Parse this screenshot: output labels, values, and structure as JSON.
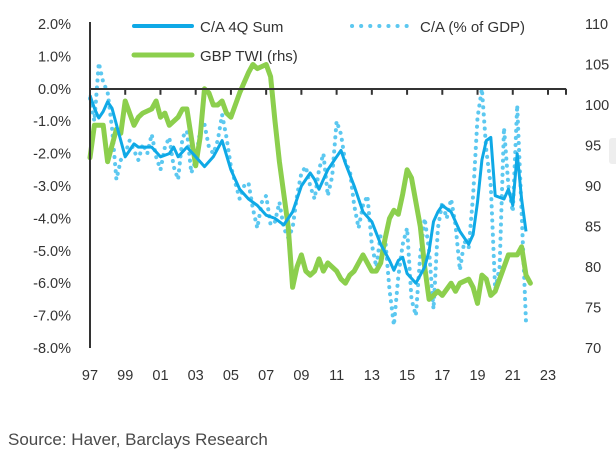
{
  "chart_data": {
    "type": "line",
    "title": "",
    "xlabel": "",
    "ylabel": "",
    "y2label": "",
    "x_tick_labels": [
      "97",
      "99",
      "01",
      "03",
      "05",
      "07",
      "09",
      "11",
      "13",
      "15",
      "17",
      "19",
      "21",
      "23"
    ],
    "x_range": [
      1997,
      2023
    ],
    "y_left": {
      "range": [
        -8.0,
        2.0
      ],
      "tick_labels": [
        "2.0%",
        "1.0%",
        "0.0%",
        "-1.0%",
        "-2.0%",
        "-3.0%",
        "-4.0%",
        "-5.0%",
        "-6.0%",
        "-7.0%",
        "-8.0%"
      ],
      "tick_values": [
        2,
        1,
        0,
        -1,
        -2,
        -3,
        -4,
        -5,
        -6,
        -7,
        -8
      ]
    },
    "y_right": {
      "range": [
        70,
        110
      ],
      "tick_labels": [
        "110",
        "105",
        "100",
        "95",
        "90",
        "85",
        "80",
        "75",
        "70"
      ],
      "tick_values": [
        110,
        105,
        100,
        95,
        90,
        85,
        80,
        75,
        70
      ]
    },
    "grid": false,
    "legend": {
      "placement": "top",
      "entries": [
        "C/A 4Q Sum",
        "C/A (% of GDP)",
        "GBP TWI (rhs)"
      ]
    },
    "series": [
      {
        "name": "C/A 4Q Sum",
        "axis": "left",
        "style": "solid",
        "color": "#0fa9e6",
        "x": [
          1997.0,
          1997.25,
          1997.5,
          1997.75,
          1998.0,
          1998.25,
          1998.5,
          1998.75,
          1999.0,
          1999.25,
          1999.5,
          1999.75,
          2000.0,
          2000.5,
          2001.0,
          2001.5,
          2001.75,
          2002.0,
          2002.5,
          2003.0,
          2003.5,
          2004.0,
          2004.5,
          2005.0,
          2005.5,
          2006.0,
          2006.5,
          2007.0,
          2007.5,
          2008.0,
          2008.5,
          2009.0,
          2009.5,
          2009.75,
          2010.0,
          2010.5,
          2011.0,
          2011.25,
          2011.5,
          2012.0,
          2012.5,
          2013.0,
          2013.5,
          2014.0,
          2014.25,
          2014.5,
          2014.75,
          2015.0,
          2015.5,
          2016.0,
          2016.25,
          2016.5,
          2016.75,
          2017.0,
          2017.5,
          2018.0,
          2018.5,
          2018.75,
          2019.0,
          2019.25,
          2019.5,
          2019.75,
          2020.0,
          2020.5,
          2020.75,
          2021.0,
          2021.25,
          2021.5,
          2021.75
        ],
        "values": [
          -0.2,
          -0.6,
          -0.9,
          -0.7,
          -0.4,
          -0.6,
          -1.1,
          -1.6,
          -2.1,
          -1.9,
          -1.7,
          -1.8,
          -1.8,
          -1.8,
          -2.1,
          -2.0,
          -1.8,
          -2.1,
          -1.8,
          -2.1,
          -2.4,
          -2.1,
          -1.6,
          -2.5,
          -3.1,
          -3.4,
          -3.6,
          -3.9,
          -4.0,
          -4.2,
          -3.8,
          -3.0,
          -2.6,
          -2.8,
          -3.1,
          -2.5,
          -2.1,
          -1.9,
          -2.3,
          -3.0,
          -3.8,
          -4.1,
          -4.8,
          -5.3,
          -5.6,
          -5.3,
          -5.2,
          -5.7,
          -6.0,
          -5.5,
          -5.0,
          -4.1,
          -3.8,
          -3.6,
          -3.8,
          -4.4,
          -4.8,
          -4.5,
          -3.5,
          -2.2,
          -1.6,
          -1.5,
          -3.3,
          -3.4,
          -3.1,
          -3.6,
          -2.0,
          -3.4,
          -4.4
        ]
      },
      {
        "name": "C/A (% of GDP)",
        "axis": "left",
        "style": "dotted",
        "color": "#5cc8f0",
        "x": [
          1997.0,
          1997.25,
          1997.5,
          1997.75,
          1998.0,
          1998.25,
          1998.5,
          1998.75,
          1999.0,
          1999.25,
          1999.5,
          1999.75,
          2000.0,
          2000.25,
          2000.5,
          2000.75,
          2001.0,
          2001.25,
          2001.5,
          2001.75,
          2002.0,
          2002.25,
          2002.5,
          2002.75,
          2003.0,
          2003.25,
          2003.5,
          2003.75,
          2004.0,
          2004.25,
          2004.5,
          2004.75,
          2005.0,
          2005.25,
          2005.5,
          2005.75,
          2006.0,
          2006.25,
          2006.5,
          2006.75,
          2007.0,
          2007.25,
          2007.5,
          2007.75,
          2008.0,
          2008.25,
          2008.5,
          2008.75,
          2009.0,
          2009.25,
          2009.5,
          2009.75,
          2010.0,
          2010.25,
          2010.5,
          2010.75,
          2011.0,
          2011.25,
          2011.5,
          2011.75,
          2012.0,
          2012.25,
          2012.5,
          2012.75,
          2013.0,
          2013.25,
          2013.5,
          2013.75,
          2014.0,
          2014.25,
          2014.5,
          2014.75,
          2015.0,
          2015.25,
          2015.5,
          2015.75,
          2016.0,
          2016.25,
          2016.5,
          2016.75,
          2017.0,
          2017.25,
          2017.5,
          2017.75,
          2018.0,
          2018.25,
          2018.5,
          2018.75,
          2019.0,
          2019.25,
          2019.5,
          2019.75,
          2020.0,
          2020.25,
          2020.5,
          2020.75,
          2021.0,
          2021.25,
          2021.5,
          2021.75
        ],
        "values": [
          -0.3,
          -1.0,
          0.8,
          0.2,
          -0.1,
          -1.2,
          -2.8,
          -2.2,
          -2.0,
          -1.6,
          -1.9,
          -2.2,
          -1.7,
          -2.0,
          -1.4,
          -2.1,
          -2.5,
          -1.8,
          -1.5,
          -2.4,
          -2.8,
          -1.5,
          -1.3,
          -2.6,
          -2.2,
          -1.3,
          -1.1,
          -1.8,
          -2.0,
          -1.6,
          -0.8,
          -1.5,
          -2.4,
          -2.9,
          -3.4,
          -3.0,
          -2.9,
          -3.7,
          -4.3,
          -3.5,
          -3.3,
          -4.2,
          -4.1,
          -3.5,
          -4.3,
          -4.6,
          -4.3,
          -3.3,
          -2.6,
          -2.4,
          -3.0,
          -3.4,
          -2.5,
          -2.0,
          -3.3,
          -2.7,
          -1.0,
          -1.4,
          -2.3,
          -2.5,
          -3.6,
          -4.3,
          -3.6,
          -3.3,
          -4.8,
          -5.5,
          -4.5,
          -4.6,
          -6.2,
          -7.3,
          -5.8,
          -4.8,
          -4.3,
          -6.5,
          -7.0,
          -5.1,
          -4.0,
          -5.0,
          -6.8,
          -4.3,
          -3.5,
          -4.0,
          -3.4,
          -4.2,
          -5.6,
          -4.7,
          -4.9,
          -3.3,
          -0.9,
          0.0,
          -1.9,
          -3.0,
          -6.2,
          -5.5,
          -1.2,
          -3.0,
          -3.8,
          -0.5,
          -3.8,
          -7.2
        ]
      },
      {
        "name": "GBP TWI (rhs)",
        "axis": "right",
        "style": "solid",
        "color": "#8ccf4d",
        "x": [
          1997.0,
          1997.25,
          1997.75,
          1998.0,
          1998.25,
          1998.5,
          1998.75,
          1999.0,
          1999.25,
          1999.5,
          1999.75,
          2000.0,
          2000.5,
          2000.75,
          2001.0,
          2001.25,
          2001.5,
          2002.0,
          2002.25,
          2002.5,
          2003.0,
          2003.25,
          2003.5,
          2003.75,
          2004.0,
          2004.25,
          2004.5,
          2004.75,
          2005.0,
          2005.5,
          2006.0,
          2006.25,
          2006.5,
          2007.0,
          2007.25,
          2007.5,
          2007.75,
          2008.0,
          2008.25,
          2008.5,
          2008.75,
          2009.0,
          2009.25,
          2009.5,
          2009.75,
          2010.0,
          2010.25,
          2010.5,
          2011.0,
          2011.25,
          2011.5,
          2011.75,
          2012.0,
          2012.5,
          2013.0,
          2013.25,
          2013.5,
          2013.75,
          2014.0,
          2014.25,
          2014.5,
          2014.75,
          2015.0,
          2015.25,
          2015.5,
          2015.75,
          2016.0,
          2016.25,
          2016.5,
          2016.75,
          2017.0,
          2017.5,
          2017.75,
          2018.0,
          2018.5,
          2018.75,
          2019.0,
          2019.25,
          2019.5,
          2019.75,
          2020.0,
          2020.5,
          2020.75,
          2021.0,
          2021.25,
          2021.5,
          2021.75,
          2022.0
        ],
        "values": [
          93.5,
          97.5,
          97.5,
          93.0,
          95.0,
          97.0,
          96.5,
          100.5,
          99.0,
          97.5,
          98.5,
          99.0,
          99.5,
          100.5,
          98.5,
          99.0,
          97.5,
          98.5,
          99.5,
          99.5,
          92.5,
          96.0,
          102.0,
          101.5,
          100.0,
          100.0,
          100.5,
          99.0,
          98.5,
          101.5,
          104.0,
          105.0,
          104.5,
          105.0,
          103.5,
          98.0,
          93.0,
          89.0,
          85.0,
          77.5,
          80.0,
          81.5,
          79.5,
          79.0,
          79.5,
          81.0,
          79.5,
          80.5,
          79.5,
          78.5,
          78.0,
          79.0,
          79.5,
          81.5,
          79.5,
          79.5,
          80.5,
          83.5,
          86.0,
          87.0,
          86.5,
          89.0,
          92.0,
          91.0,
          88.0,
          85.0,
          80.0,
          76.0,
          76.5,
          77.0,
          76.5,
          78.0,
          77.0,
          78.0,
          78.5,
          77.5,
          75.5,
          79.0,
          78.5,
          76.5,
          77.0,
          80.0,
          81.5,
          81.5,
          81.5,
          82.5,
          79.0,
          78.0
        ]
      }
    ],
    "source": "Source: Haver, Barclays Research"
  }
}
